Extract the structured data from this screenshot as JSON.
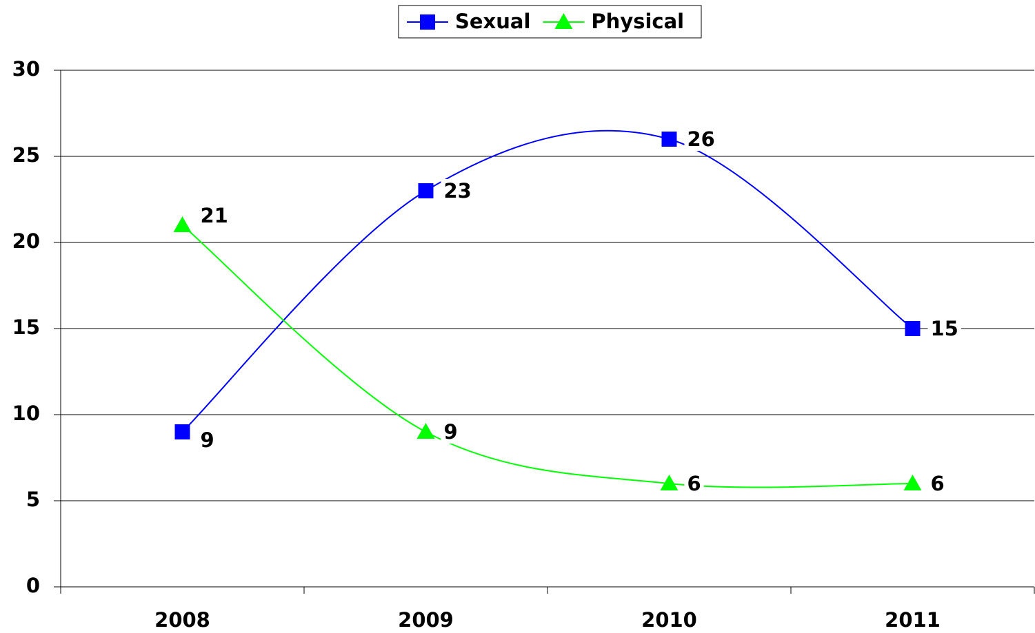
{
  "chart_data": {
    "type": "line",
    "categories": [
      "2008",
      "2009",
      "2010",
      "2011"
    ],
    "series": [
      {
        "name": "Sexual",
        "color": "#0000ff",
        "marker": "square",
        "values": [
          9,
          23,
          26,
          15
        ]
      },
      {
        "name": "Physical",
        "color": "#00ff00",
        "marker": "triangle",
        "values": [
          21,
          9,
          6,
          6
        ]
      }
    ],
    "ylim": [
      0,
      30
    ],
    "yticks": [
      0,
      5,
      10,
      15,
      20,
      25,
      30
    ],
    "grid": true,
    "smooth": true,
    "legend": "top"
  }
}
